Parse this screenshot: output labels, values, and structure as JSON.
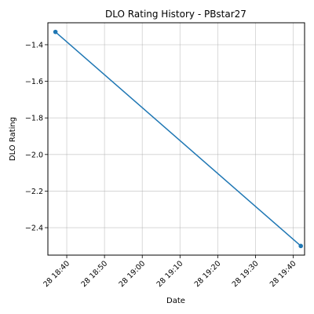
{
  "chart_data": {
    "type": "line",
    "title": "DLO Rating History - PBstar27",
    "xlabel": "Date",
    "ylabel": "DLO Rating",
    "x_ticks": [
      "28 18:40",
      "28 18:50",
      "28 19:00",
      "28 19:10",
      "28 19:20",
      "28 19:30",
      "28 19:40"
    ],
    "y_ticks": [
      "-1.4",
      "-1.6",
      "-1.8",
      "-2.0",
      "-2.2",
      "-2.4"
    ],
    "y_tick_values": [
      -1.4,
      -1.6,
      -1.8,
      -2.0,
      -2.2,
      -2.4
    ],
    "xlim": [
      "28 18:35",
      "28 19:43"
    ],
    "ylim": [
      -2.55,
      -1.28
    ],
    "grid": true,
    "series": [
      {
        "color": "#1f77b4",
        "points": [
          {
            "x": "28 18:37",
            "y": -1.33
          },
          {
            "x": "28 19:42",
            "y": -2.5
          }
        ]
      }
    ]
  }
}
